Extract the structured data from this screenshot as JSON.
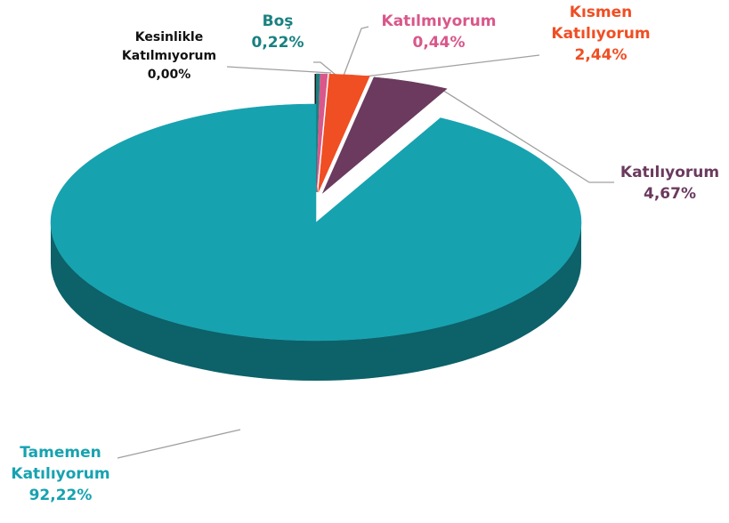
{
  "chart_data": {
    "type": "pie",
    "categories": [
      "Kesinlikle Katılmıyorum",
      "Boş",
      "Katılmıyorum",
      "Kısmen Katılıyorum",
      "Katılıyorum",
      "Tamemen Katılıyorum"
    ],
    "values": [
      0,
      0.22,
      0.44,
      2.44,
      4.67,
      92.22
    ],
    "value_labels": [
      "0,00%",
      "0,22%",
      "0,44%",
      "2,44%",
      "4,67%",
      "92,22%"
    ],
    "colors": [
      "#111111",
      "#1a8080",
      "#d9578a",
      "#f04e23",
      "#6b3a5e",
      "#17a2b0"
    ]
  }
}
